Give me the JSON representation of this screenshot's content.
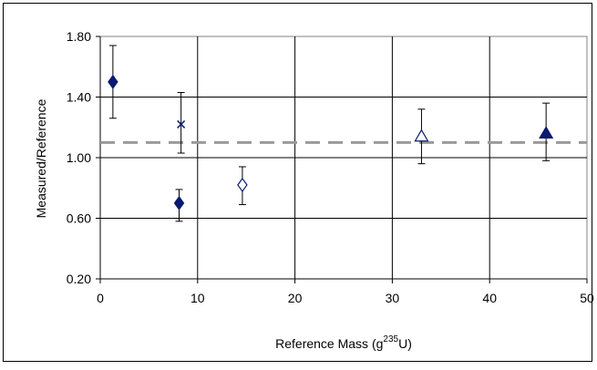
{
  "chart_data": {
    "type": "scatter",
    "title": "",
    "xlabel": "Reference Mass (g",
    "xlabel_sup": "235",
    "xlabel_tail": "U)",
    "ylabel": "Measured/Reference",
    "xlim": [
      0,
      50
    ],
    "ylim": [
      0.2,
      1.8
    ],
    "x_ticks": [
      "0",
      "10",
      "20",
      "30",
      "40",
      "50"
    ],
    "y_ticks": [
      "0.20",
      "0.60",
      "1.00",
      "1.40",
      "1.80"
    ],
    "grid": true,
    "reference_line": {
      "y": 1.1,
      "style": "dashed",
      "color": "#999999"
    },
    "points": [
      {
        "x": 1.3,
        "y": 1.5,
        "err_low": 1.26,
        "err_high": 1.74,
        "marker": "diamond-filled"
      },
      {
        "x": 8.1,
        "y": 0.7,
        "err_low": 0.58,
        "err_high": 0.79,
        "marker": "diamond-filled"
      },
      {
        "x": 8.3,
        "y": 1.22,
        "err_low": 1.03,
        "err_high": 1.43,
        "marker": "x"
      },
      {
        "x": 14.6,
        "y": 0.82,
        "err_low": 0.69,
        "err_high": 0.94,
        "marker": "diamond-open"
      },
      {
        "x": 33.0,
        "y": 1.14,
        "err_low": 0.96,
        "err_high": 1.32,
        "marker": "triangle-open"
      },
      {
        "x": 45.8,
        "y": 1.16,
        "err_low": 0.98,
        "err_high": 1.36,
        "marker": "triangle-filled"
      }
    ],
    "colors": {
      "marker": "#0a1a6e",
      "grid": "#000000",
      "reference": "#999999"
    }
  }
}
